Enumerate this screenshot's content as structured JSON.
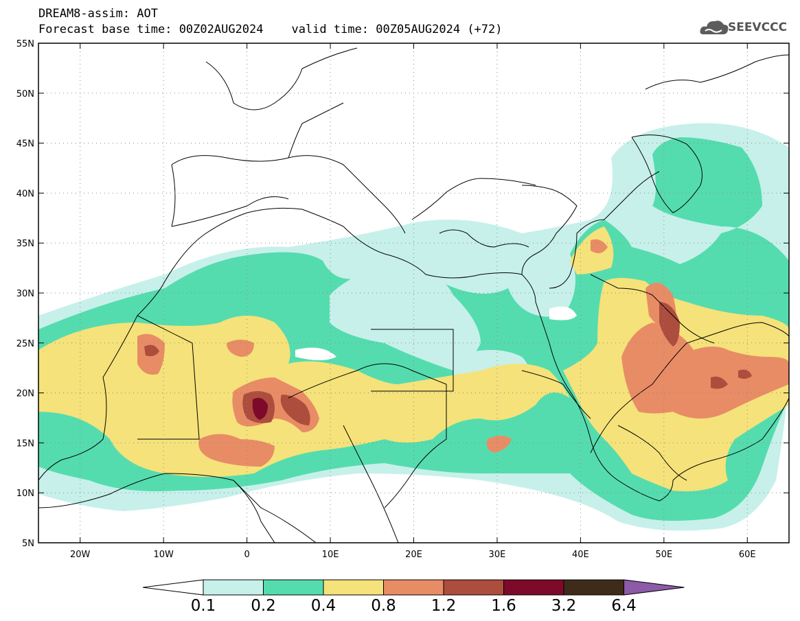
{
  "header": {
    "line1": "DREAM8-assim: AOT",
    "line2": "Forecast base time: 00Z02AUG2024    valid time: 00Z05AUG2024 (+72)"
  },
  "logo": {
    "text": "SEEVCCC",
    "icon": "cloud-logo-icon"
  },
  "map": {
    "lat_range": [
      5,
      55
    ],
    "lon_range": [
      -25,
      65
    ],
    "lat_ticks": [
      "5N",
      "10N",
      "15N",
      "20N",
      "25N",
      "30N",
      "35N",
      "40N",
      "45N",
      "50N",
      "55N"
    ],
    "lon_ticks": [
      "20W",
      "10W",
      "0",
      "10E",
      "20E",
      "30E",
      "40E",
      "50E",
      "60E"
    ],
    "gridlines": "dotted"
  },
  "colorbar": {
    "levels": [
      "0.1",
      "0.2",
      "0.4",
      "0.8",
      "1.2",
      "1.6",
      "3.2",
      "6.4"
    ],
    "colors": [
      "#c7f0ea",
      "#55dcae",
      "#f5e27a",
      "#e88c66",
      "#ad4d3d",
      "#7d0a2a",
      "#3e2b1a"
    ],
    "under_color": "#ffffff",
    "over_color": "#8c5aa6"
  }
}
